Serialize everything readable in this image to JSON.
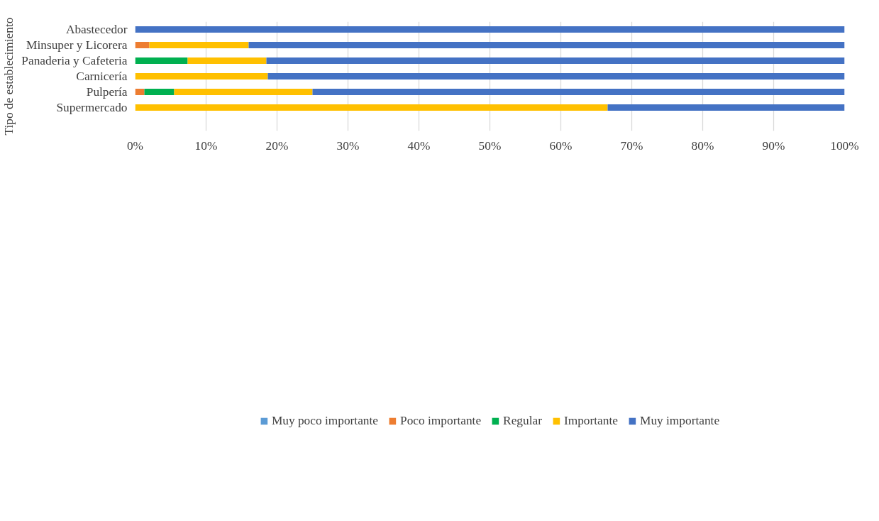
{
  "chart_data": {
    "type": "bar",
    "orientation": "horizontal",
    "stacked": true,
    "ylabel": "Tipo de establecimiento",
    "categories": [
      "Abastecedor",
      "Minsuper y Licorera",
      "Panaderia y Cafeteria",
      "Carnicería",
      "Pulpería",
      "Supermercado",
      null
    ],
    "series": [
      {
        "name": "Muy poco importante",
        "color": "#5b9bd5",
        "values": [
          0,
          0,
          0,
          0,
          0,
          0,
          null
        ]
      },
      {
        "name": "Poco importante",
        "color": "#ed7d31",
        "values": [
          0,
          2,
          0,
          0,
          1.3,
          0,
          null
        ]
      },
      {
        "name": "Regular",
        "color": "#00b050",
        "values": [
          0,
          0,
          7.4,
          0,
          4.2,
          0,
          null
        ]
      },
      {
        "name": "Importante",
        "color": "#ffc000",
        "values": [
          0,
          14,
          11.1,
          18.7,
          19.5,
          66.6,
          null
        ]
      },
      {
        "name": "Muy importante",
        "color": "#4472c4",
        "values": [
          100,
          84,
          81.5,
          81.3,
          75,
          33.4,
          null
        ]
      }
    ],
    "xlim": [
      0,
      100
    ],
    "xticks": [
      {
        "value": 0,
        "label": "0%"
      },
      {
        "value": 10,
        "label": "10%"
      },
      {
        "value": 20,
        "label": "20%"
      },
      {
        "value": 30,
        "label": "30%"
      },
      {
        "value": 40,
        "label": "40%"
      },
      {
        "value": 50,
        "label": "50%"
      },
      {
        "value": 60,
        "label": "60%"
      },
      {
        "value": 70,
        "label": "70%"
      },
      {
        "value": 80,
        "label": "80%"
      },
      {
        "value": 90,
        "label": "90%"
      },
      {
        "value": 100,
        "label": "100%"
      }
    ],
    "grid": "x",
    "legend": "bottom"
  }
}
